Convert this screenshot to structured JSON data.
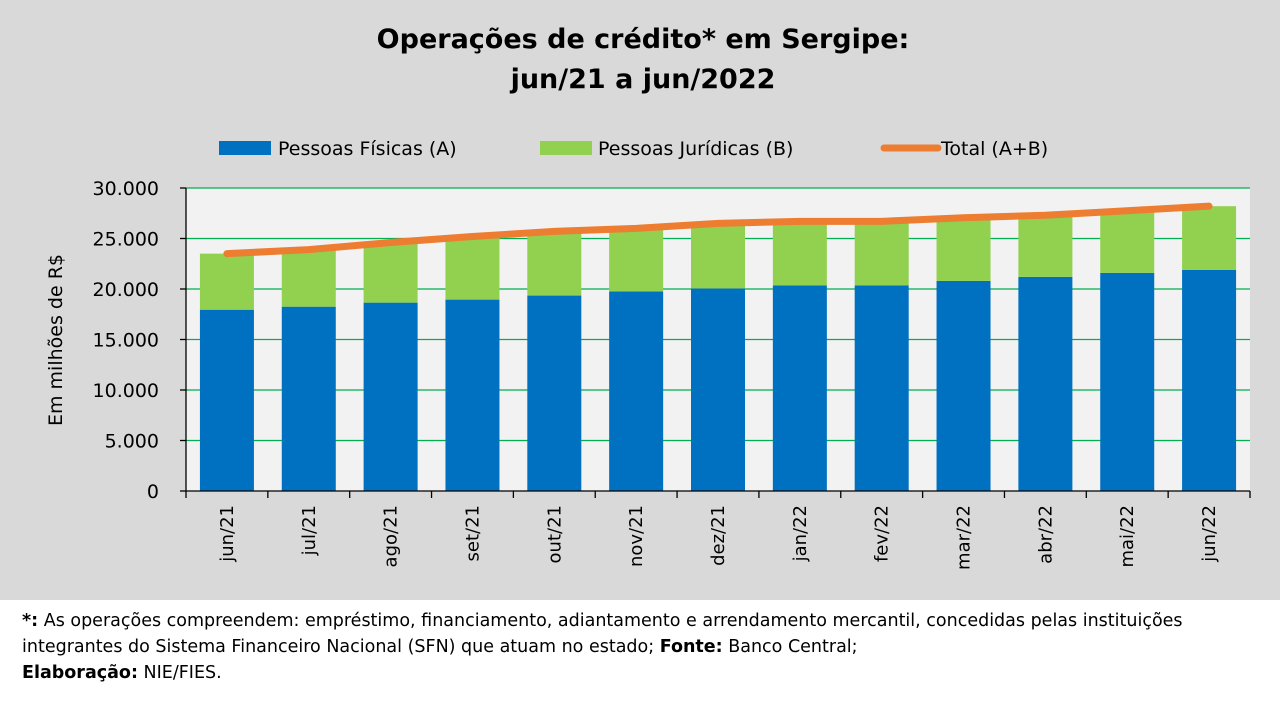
{
  "chart_data": {
    "type": "bar",
    "stacked": true,
    "title": [
      "Operações de crédito* em Sergipe:",
      "jun/21 a jun/2022"
    ],
    "ylabel": "Em milhões de R$",
    "xlabel": "",
    "ylim": [
      0,
      30000
    ],
    "yticks": [
      0,
      5000,
      10000,
      15000,
      20000,
      25000,
      30000
    ],
    "ytick_labels": [
      "0",
      "5.000",
      "10.000",
      "15.000",
      "20.000",
      "25.000",
      "30.000"
    ],
    "grid": true,
    "legend_position": "top",
    "categories": [
      "jun/21",
      "jul/21",
      "ago/21",
      "set/21",
      "out/21",
      "nov/21",
      "dez/21",
      "jan/22",
      "fev/22",
      "mar/22",
      "abr/22",
      "mai/22",
      "jun/22"
    ],
    "series": [
      {
        "name": "Pessoas Físicas (A)",
        "kind": "bar",
        "color": "#0070c0",
        "values": [
          17950,
          18250,
          18650,
          18950,
          19350,
          19750,
          20050,
          20350,
          20350,
          20800,
          21200,
          21600,
          21900
        ]
      },
      {
        "name": "Pessoas Jurídicas (B)",
        "kind": "bar",
        "color": "#92d050",
        "values": [
          5550,
          5650,
          5950,
          6250,
          6350,
          6250,
          6450,
          6350,
          6350,
          6250,
          6100,
          6150,
          6300
        ]
      },
      {
        "name": "Total (A+B)",
        "kind": "line",
        "color": "#ed7d31",
        "values": [
          23500,
          23900,
          24600,
          25200,
          25700,
          26000,
          26500,
          26700,
          26700,
          27050,
          27300,
          27750,
          28200
        ]
      }
    ]
  },
  "colors": {
    "panel_background": "#d9d9d9",
    "plot_background": "#f2f2f2",
    "gridline": "#00b050"
  },
  "footnote": {
    "marker": "*:",
    "text1": " As operações compreendem: empréstimo, financiamento, adiantamento e arrendamento mercantil, concedidas pelas instituições integrantes do Sistema Financeiro Nacional (SFN) que atuam no estado; ",
    "source_label": "Fonte:",
    "source": " Banco Central;",
    "elab_label": "Elaboração:",
    "elab": " NIE/FIES."
  }
}
